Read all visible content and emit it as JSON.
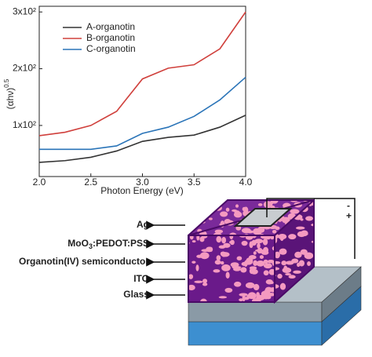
{
  "chart_data": {
    "type": "line",
    "x_label": "Photon Energy (eV)",
    "y_label": "(αhν)",
    "y_label_exponent": "0.5",
    "x": [
      2.0,
      2.25,
      2.5,
      2.75,
      3.0,
      3.25,
      3.5,
      3.75,
      4.0
    ],
    "series": [
      {
        "name": "A-organotin",
        "color": "#333333",
        "values": [
          35,
          38,
          44,
          55,
          72,
          79,
          83,
          97,
          118
        ]
      },
      {
        "name": "B-organotin",
        "color": "#d0403c",
        "values": [
          82,
          88,
          100,
          125,
          182,
          201,
          207,
          235,
          300
        ]
      },
      {
        "name": "C-organotin",
        "color": "#2a74b8",
        "values": [
          58,
          58,
          58,
          64,
          86,
          97,
          116,
          145,
          185
        ]
      }
    ],
    "xlim": [
      2.0,
      4.0
    ],
    "xticks": [
      {
        "value": 2,
        "label": "2.0"
      },
      2.5,
      {
        "value": 3,
        "label": "3.0"
      },
      3.5,
      {
        "value": 4,
        "label": "4.0"
      }
    ],
    "ylim": [
      10,
      310
    ],
    "yticks": [
      {
        "value": 100,
        "label": "1x10²"
      },
      {
        "value": 200,
        "label": "2x10²"
      },
      {
        "value": 300,
        "label": "3x10²"
      }
    ],
    "legend": "upper left",
    "grid": false
  },
  "diagram": {
    "labels": [
      "Ag",
      [
        "MoO",
        "3",
        ":PEDOT:PSS"
      ],
      "Organotin(IV) semiconductor",
      "ITO",
      "Glass"
    ],
    "minus": "-",
    "plus": "+"
  }
}
